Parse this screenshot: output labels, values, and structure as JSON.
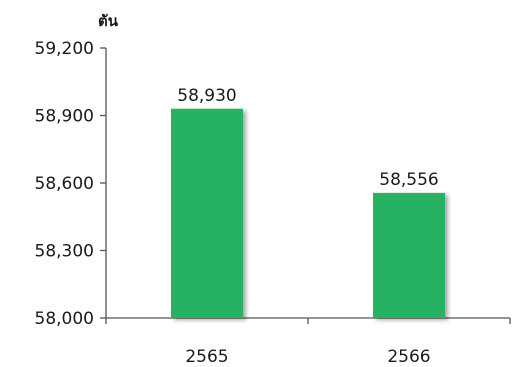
{
  "chart_data": {
    "type": "bar",
    "unit_label": "ตัน",
    "categories": [
      "2565",
      "2566"
    ],
    "values": [
      58930,
      58556
    ],
    "data_labels": [
      "58,930",
      "58,556"
    ],
    "ylim": [
      58000,
      59200
    ],
    "yticks": [
      58000,
      58300,
      58600,
      58900,
      59200
    ],
    "ytick_labels": [
      "58,000",
      "58,300",
      "58,600",
      "58,900",
      "59,200"
    ],
    "bar_color": "#27b262",
    "grid": false,
    "legend": false,
    "title": "",
    "xlabel": ""
  }
}
